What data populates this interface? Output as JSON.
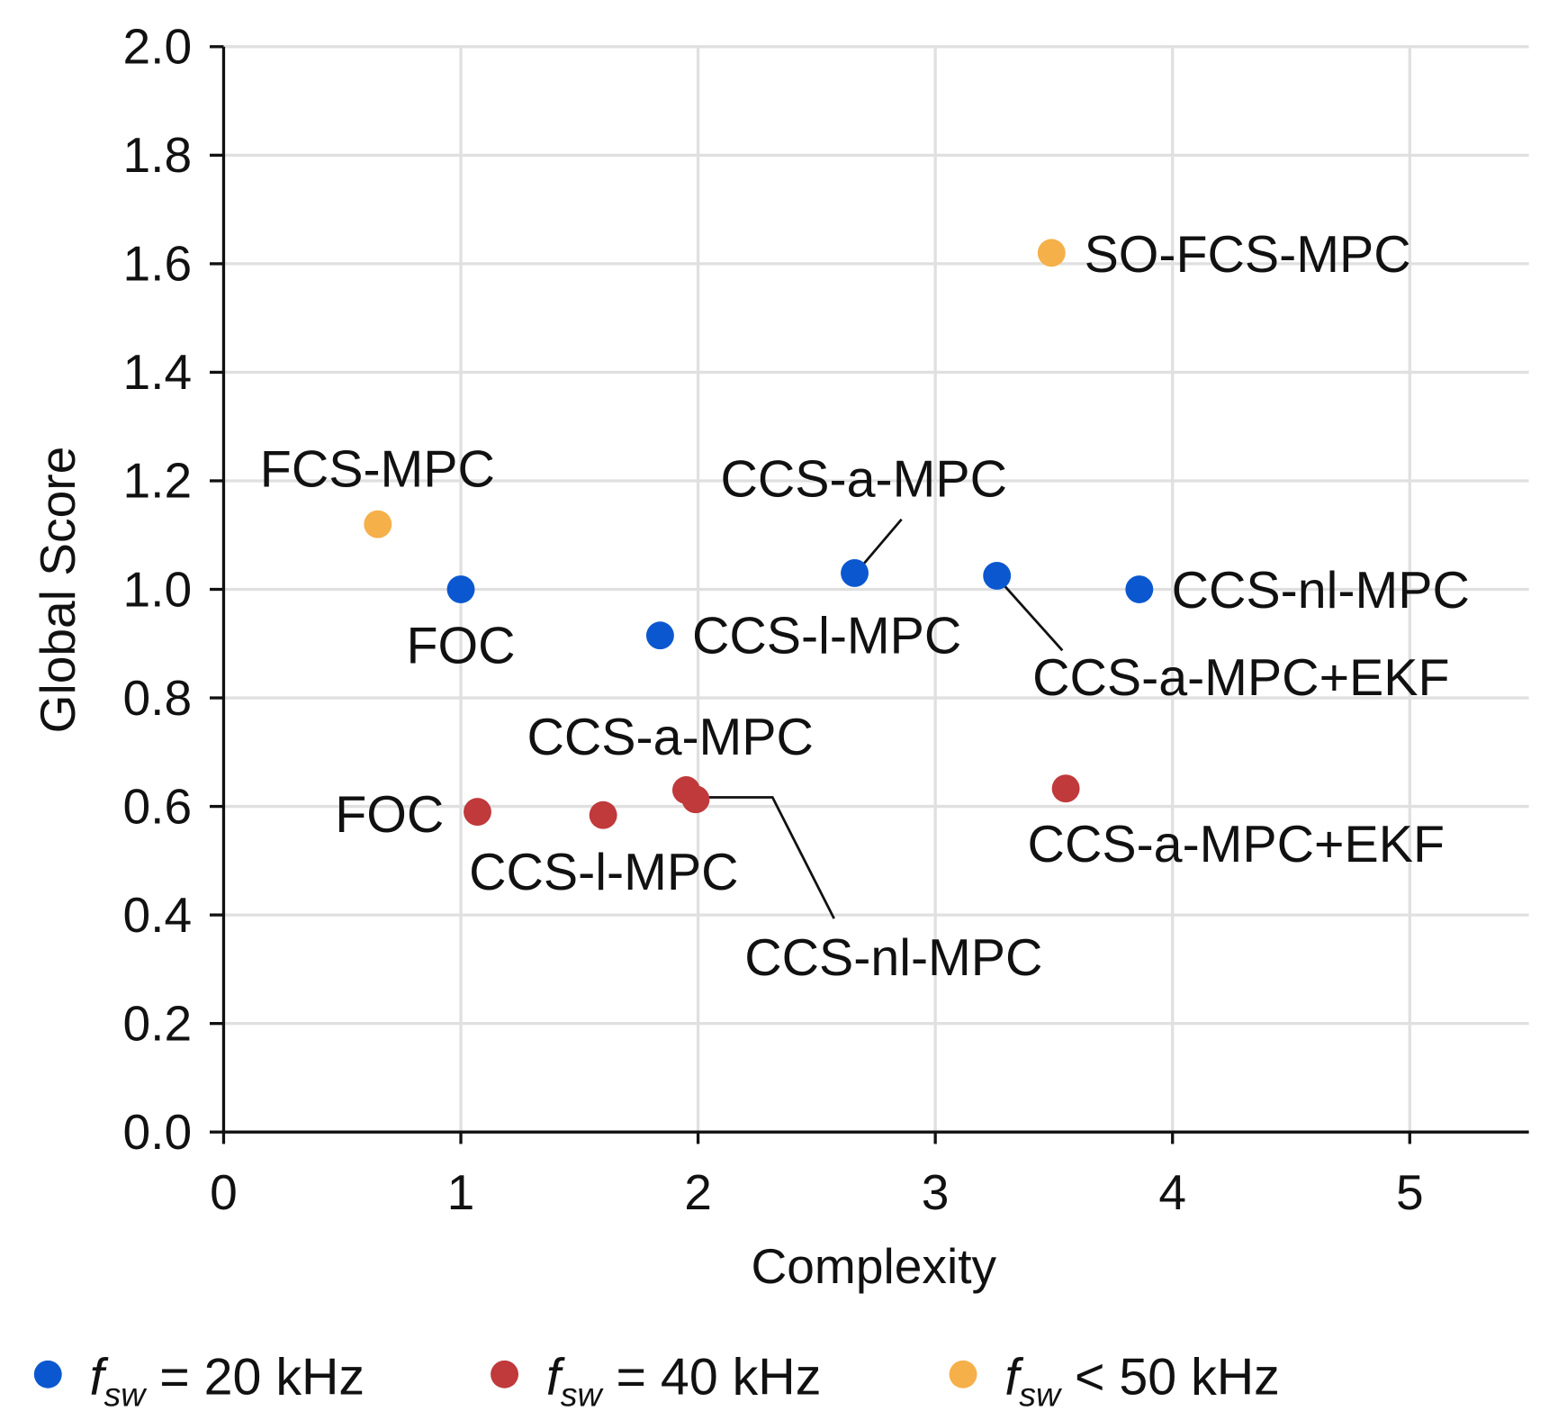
{
  "chart_data": {
    "type": "scatter",
    "title": "",
    "xlabel": "Complexity",
    "ylabel": "Global Score",
    "xlim": [
      0,
      5.5
    ],
    "ylim": [
      0,
      2.0
    ],
    "xticks": [
      "0",
      "1",
      "2",
      "3",
      "4",
      "5"
    ],
    "yticks": [
      "0.0",
      "0.2",
      "0.4",
      "0.6",
      "0.8",
      "1.0",
      "1.2",
      "1.4",
      "1.6",
      "1.8",
      "2.0"
    ],
    "grid": true,
    "legend_position": "bottom",
    "series": [
      {
        "name": "fsw = 20 kHz",
        "legend_sub": "sw",
        "legend_rest": " = 20 kHz",
        "color": "#0b57d0",
        "points": [
          {
            "label": "FOC",
            "x": 1.0,
            "y": 1.0
          },
          {
            "label": "CCS-l-MPC",
            "x": 1.84,
            "y": 0.915
          },
          {
            "label": "CCS-a-MPC",
            "x": 2.66,
            "y": 1.03
          },
          {
            "label": "CCS-a-MPC+EKF",
            "x": 3.26,
            "y": 1.025
          },
          {
            "label": "CCS-nl-MPC",
            "x": 3.86,
            "y": 1.0
          }
        ]
      },
      {
        "name": "fsw = 40 kHz",
        "legend_sub": "sw",
        "legend_rest": " = 40 kHz",
        "color": "#c0393b",
        "points": [
          {
            "label": "FOC",
            "x": 1.07,
            "y": 0.59
          },
          {
            "label": "CCS-l-MPC",
            "x": 1.6,
            "y": 0.584
          },
          {
            "label": "CCS-a-MPC",
            "x": 1.95,
            "y": 0.63
          },
          {
            "label": "CCS-nl-MPC",
            "x": 1.99,
            "y": 0.613
          },
          {
            "label": "CCS-a-MPC+EKF",
            "x": 3.55,
            "y": 0.633
          }
        ]
      },
      {
        "name": "fsw < 50 kHz",
        "legend_sub": "sw",
        "legend_rest": " < 50 kHz",
        "color": "#f5b04a",
        "points": [
          {
            "label": "FCS-MPC",
            "x": 0.65,
            "y": 1.12
          },
          {
            "label": "SO-FCS-MPC",
            "x": 3.49,
            "y": 1.62
          }
        ]
      }
    ]
  }
}
